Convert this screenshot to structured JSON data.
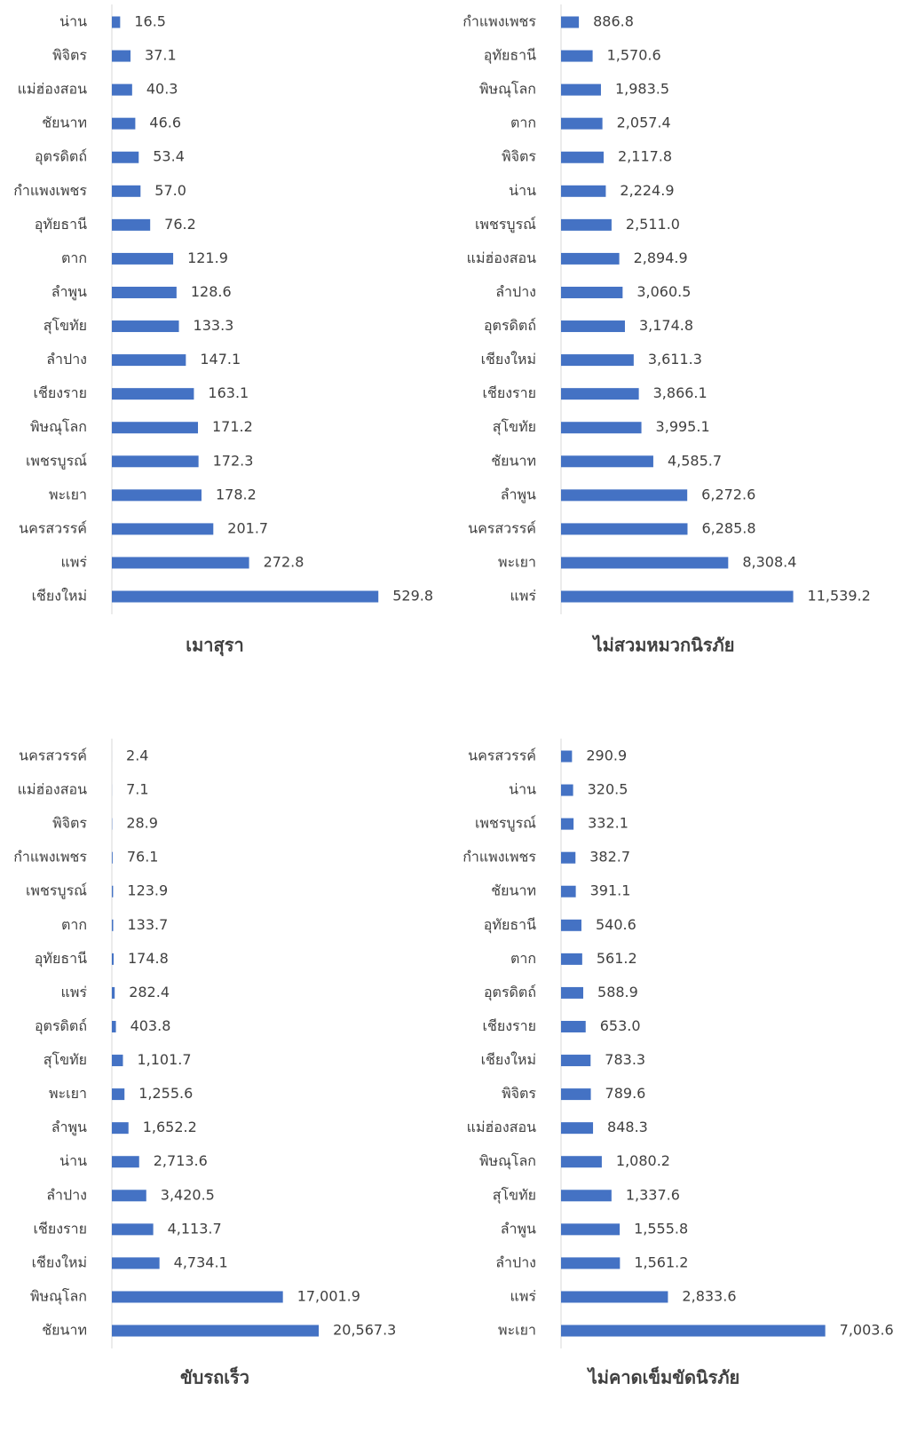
{
  "chart_data": [
    {
      "type": "bar",
      "title": "เมาสุรา",
      "color": "#4472c4",
      "xlim": [
        0,
        600
      ],
      "categories": [
        "น่าน",
        "พิจิตร",
        "แม่ฮ่องสอน",
        "ชัยนาท",
        "อุตรดิตถ์",
        "กำแพงเพชร",
        "อุทัยธานี",
        "ตาก",
        "ลำพูน",
        "สุโขทัย",
        "ลำปาง",
        "เชียงราย",
        "พิษณุโลก",
        "เพชรบูรณ์",
        "พะเยา",
        "นครสวรรค์",
        "แพร่",
        "เชียงใหม่"
      ],
      "values": [
        16.5,
        37.1,
        40.3,
        46.6,
        53.4,
        57.0,
        76.2,
        121.9,
        128.6,
        133.3,
        147.1,
        163.1,
        171.2,
        172.3,
        178.2,
        201.7,
        272.8,
        529.8
      ],
      "value_labels": [
        "16.5",
        "37.1",
        "40.3",
        "46.6",
        "53.4",
        "57.0",
        "76.2",
        "121.9",
        "128.6",
        "133.3",
        "147.1",
        "163.1",
        "171.2",
        "172.3",
        "178.2",
        "201.7",
        "272.8",
        "529.8"
      ]
    },
    {
      "type": "bar",
      "title": "ไม่สวมหมวกนิรภัย",
      "color": "#4472c4",
      "xlim": [
        0,
        15000
      ],
      "categories": [
        "กำแพงเพชร",
        "อุทัยธานี",
        "พิษณุโลก",
        "ตาก",
        "พิจิตร",
        "น่าน",
        "เพชรบูรณ์",
        "แม่ฮ่องสอน",
        "ลำปาง",
        "อุตรดิตถ์",
        "เชียงใหม่",
        "เชียงราย",
        "สุโขทัย",
        "ชัยนาท",
        "ลำพูน",
        "นครสวรรค์",
        "พะเยา",
        "แพร่"
      ],
      "values": [
        886.8,
        1570.6,
        1983.5,
        2057.4,
        2117.8,
        2224.9,
        2511.0,
        2894.9,
        3060.5,
        3174.8,
        3611.3,
        3866.1,
        3995.1,
        4585.7,
        6272.6,
        6285.8,
        8308.4,
        11539.2
      ],
      "value_labels": [
        "886.8",
        "1,570.6",
        "1,983.5",
        "2,057.4",
        "2,117.8",
        "2,224.9",
        "2,511.0",
        "2,894.9",
        "3,060.5",
        "3,174.8",
        "3,611.3",
        "3,866.1",
        "3,995.1",
        "4,585.7",
        "6,272.6",
        "6,285.8",
        "8,308.4",
        "11,539.2"
      ]
    },
    {
      "type": "bar",
      "title": "ขับรถเร็ว",
      "color": "#4472c4",
      "xlim": [
        0,
        30000
      ],
      "categories": [
        "นครสวรรค์",
        "แม่ฮ่องสอน",
        "พิจิตร",
        "กำแพงเพชร",
        "เพชรบูรณ์",
        "ตาก",
        "อุทัยธานี",
        "แพร่",
        "อุตรดิตถ์",
        "สุโขทัย",
        "พะเยา",
        "ลำพูน",
        "น่าน",
        "ลำปาง",
        "เชียงราย",
        "เชียงใหม่",
        "พิษณุโลก",
        "ชัยนาท"
      ],
      "values": [
        2.4,
        7.1,
        28.9,
        76.1,
        123.9,
        133.7,
        174.8,
        282.4,
        403.8,
        1101.7,
        1255.6,
        1652.2,
        2713.6,
        3420.5,
        4113.7,
        4734.1,
        17001.9,
        20567.3
      ],
      "value_labels": [
        "2.4",
        "7.1",
        "28.9",
        "76.1",
        "123.9",
        "133.7",
        "174.8",
        "282.4",
        "403.8",
        "1,101.7",
        "1,255.6",
        "1,652.2",
        "2,713.6",
        "3,420.5",
        "4,113.7",
        "4,734.1",
        "17,001.9",
        "20,567.3"
      ]
    },
    {
      "type": "bar",
      "title": "ไม่คาดเข็มขัดนิรภัย",
      "color": "#4472c4",
      "xlim": [
        0,
        8000
      ],
      "categories": [
        "นครสวรรค์",
        "น่าน",
        "เพชรบูรณ์",
        "กำแพงเพชร",
        "ชัยนาท",
        "อุทัยธานี",
        "ตาก",
        "อุตรดิตถ์",
        "เชียงราย",
        "เชียงใหม่",
        "พิจิตร",
        "แม่ฮ่องสอน",
        "พิษณุโลก",
        "สุโขทัย",
        "ลำพูน",
        "ลำปาง",
        "แพร่",
        "พะเยา"
      ],
      "values": [
        290.9,
        320.5,
        332.1,
        382.7,
        391.1,
        540.6,
        561.2,
        588.9,
        653.0,
        783.3,
        789.6,
        848.3,
        1080.2,
        1337.6,
        1555.8,
        1561.2,
        2833.6,
        7003.6
      ],
      "value_labels": [
        "290.9",
        "320.5",
        "332.1",
        "382.7",
        "391.1",
        "540.6",
        "561.2",
        "588.9",
        "653.0",
        "783.3",
        "789.6",
        "848.3",
        "1,080.2",
        "1,337.6",
        "1,555.8",
        "1,561.2",
        "2,833.6",
        "7,003.6"
      ]
    }
  ]
}
